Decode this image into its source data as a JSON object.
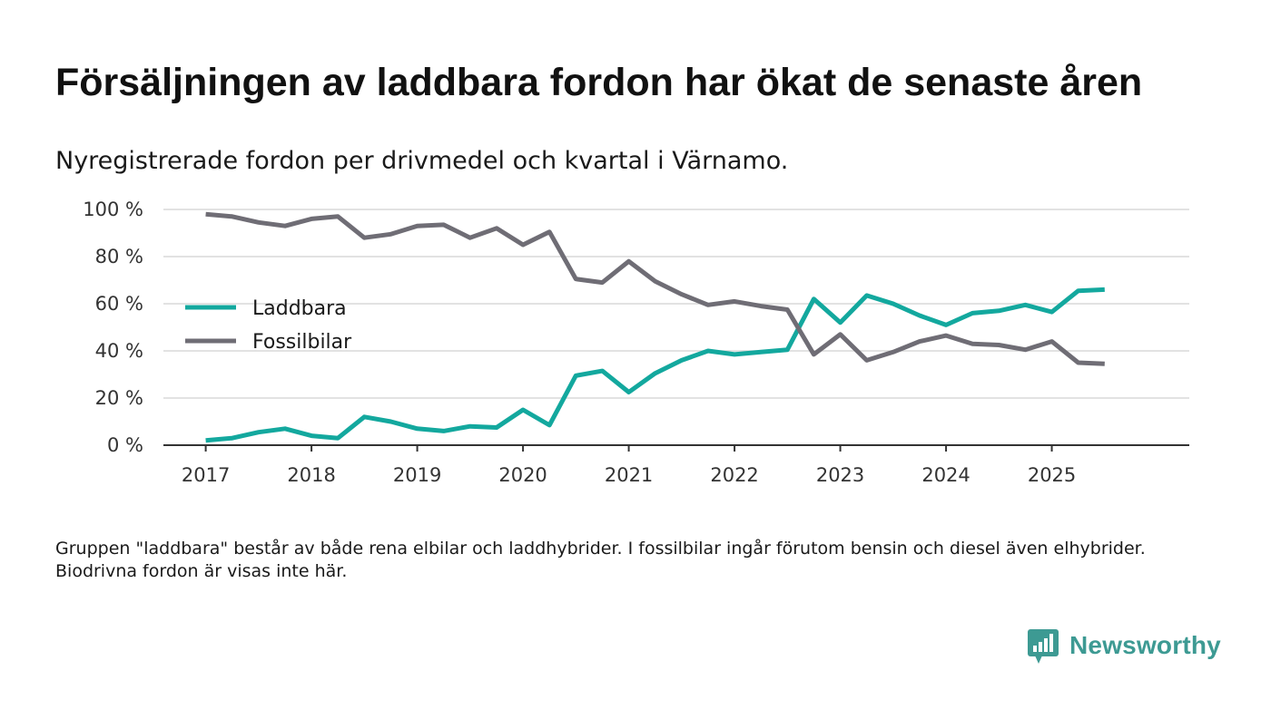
{
  "title": "Försäljningen av laddbara fordon har ökat de senaste åren",
  "subtitle": "Nyregistrerade fordon per drivmedel och kvartal i Värnamo.",
  "footnote": "Gruppen \"laddbara\" består av både rena elbilar och laddhybrider. I fossilbilar ingår förutom bensin och diesel även elhybrider. Biodrivna fordon är visas inte här.",
  "brand": {
    "name": "Newsworthy",
    "icon": "newsworthy-logo-icon",
    "color": "#3d9a93"
  },
  "chart_data": {
    "type": "line",
    "title": "Försäljningen av laddbara fordon har ökat de senaste åren",
    "subtitle": "Nyregistrerade fordon per drivmedel och kvartal i Värnamo.",
    "xlabel": "",
    "ylabel": "",
    "x_start": 2017.0,
    "x_step": 0.25,
    "xlim": [
      2016.6,
      2026.3
    ],
    "ylim": [
      0,
      100
    ],
    "x_ticks": [
      2017,
      2018,
      2019,
      2020,
      2021,
      2022,
      2023,
      2024,
      2025
    ],
    "x_tick_labels": [
      "2017",
      "2018",
      "2019",
      "2020",
      "2021",
      "2022",
      "2023",
      "2024",
      "2025"
    ],
    "y_ticks": [
      0,
      20,
      40,
      60,
      80,
      100
    ],
    "y_tick_labels": [
      "0 %",
      "20 %",
      "40 %",
      "60 %",
      "80 %",
      "100 %"
    ],
    "grid": true,
    "legend_position": "left-middle",
    "series": [
      {
        "name": "Laddbara",
        "color": "#13a89e",
        "values": [
          2,
          3,
          5.5,
          7,
          4,
          3,
          12,
          10,
          7,
          6,
          8,
          7.5,
          15,
          8.5,
          29.5,
          31.5,
          22.5,
          30.5,
          36,
          40,
          38.5,
          39.5,
          40.5,
          62,
          52,
          63.5,
          60,
          55,
          51,
          56,
          57,
          59.5,
          56.5,
          65.5,
          66
        ]
      },
      {
        "name": "Fossilbilar",
        "color": "#6f6d75",
        "values": [
          98,
          97,
          94.5,
          93,
          96,
          97,
          88,
          89.5,
          93,
          93.5,
          88,
          92,
          85,
          90.5,
          70.5,
          69,
          78,
          69.5,
          64,
          59.5,
          61,
          59,
          57.5,
          38.5,
          47,
          36,
          39.5,
          44,
          46.5,
          43,
          42.5,
          40.5,
          44,
          35,
          34.5
        ]
      }
    ]
  }
}
